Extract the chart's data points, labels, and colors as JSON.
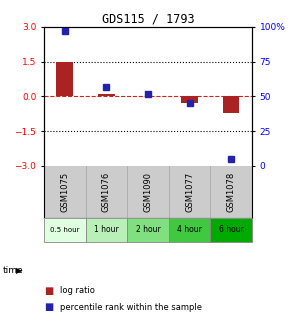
{
  "title": "GDS115 / 1793",
  "samples": [
    "GSM1075",
    "GSM1076",
    "GSM1090",
    "GSM1077",
    "GSM1078"
  ],
  "time_labels": [
    "0.5 hour",
    "1 hour",
    "2 hour",
    "4 hour",
    "6 hour"
  ],
  "time_colors": [
    "#e0ffe0",
    "#b8f0b8",
    "#80e080",
    "#40c840",
    "#00aa00"
  ],
  "log_ratios": [
    1.5,
    0.12,
    0.03,
    -0.28,
    -0.72
  ],
  "percentile_ranks": [
    97,
    57,
    52,
    45,
    5
  ],
  "ylim_left": [
    -3,
    3
  ],
  "ylim_right": [
    0,
    100
  ],
  "yticks_left": [
    -3,
    -1.5,
    0,
    1.5,
    3
  ],
  "yticks_right": [
    0,
    25,
    50,
    75,
    100
  ],
  "bar_color": "#aa2222",
  "dot_color": "#2222aa",
  "hline_color": "#cc2222",
  "dotline_color": "#000000",
  "bg_color": "#ffffff",
  "plot_bg": "#ffffff",
  "header_bg": "#cccccc",
  "legend_log_label": "log ratio",
  "legend_pct_label": "percentile rank within the sample",
  "bar_width": 0.4
}
